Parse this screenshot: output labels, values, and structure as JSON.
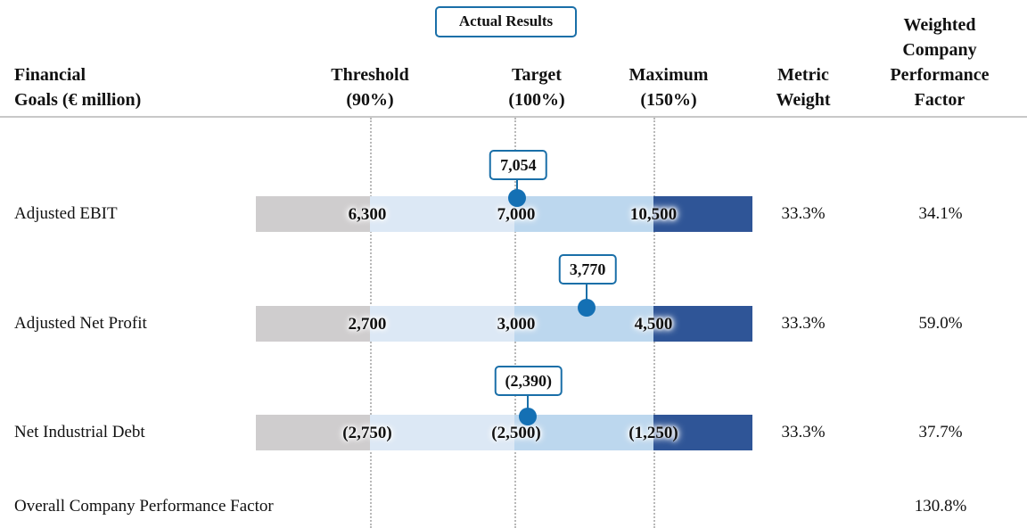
{
  "header": {
    "col_goal": [
      "Financial",
      "Goals (€ million)"
    ],
    "col_threshold": [
      "Threshold",
      "(90%)"
    ],
    "col_target": [
      "Target",
      "(100%)"
    ],
    "col_maximum": [
      "Maximum",
      "(150%)"
    ],
    "col_weight": [
      "Metric",
      "Weight"
    ],
    "col_factor": [
      "Weighted",
      "Company",
      "Performance",
      "Factor"
    ],
    "actual_results_label": "Actual Results"
  },
  "colors": {
    "below_threshold": "#cfcdce",
    "threshold_to_target": "#dce8f5",
    "target_to_max": "#bcd7ee",
    "above_max": "#2f5597",
    "actual_marker": "#1470b4",
    "callout_border": "#1a6fa8"
  },
  "chart_data": {
    "type": "bullet",
    "rows": [
      {
        "name": "Adjusted EBIT",
        "threshold_label": "6,300",
        "target_label": "7,000",
        "maximum_label": "10,500",
        "actual_label": "7,054",
        "threshold": 6300,
        "target": 7000,
        "maximum": 10500,
        "actual": 7054,
        "weight": "33.3%",
        "factor": "34.1%"
      },
      {
        "name": "Adjusted Net Profit",
        "threshold_label": "2,700",
        "target_label": "3,000",
        "maximum_label": "4,500",
        "actual_label": "3,770",
        "threshold": 2700,
        "target": 3000,
        "maximum": 4500,
        "actual": 3770,
        "weight": "33.3%",
        "factor": "59.0%"
      },
      {
        "name": "Net Industrial Debt",
        "threshold_label": "(2,750)",
        "target_label": "(2,500)",
        "maximum_label": "(1,250)",
        "actual_label": "(2,390)",
        "threshold": -2750,
        "target": -2500,
        "maximum": -1250,
        "actual": -2390,
        "weight": "33.3%",
        "factor": "37.7%"
      }
    ]
  },
  "footer": {
    "overall_label": "Overall Company Performance Factor",
    "overall_value": "130.8%"
  }
}
